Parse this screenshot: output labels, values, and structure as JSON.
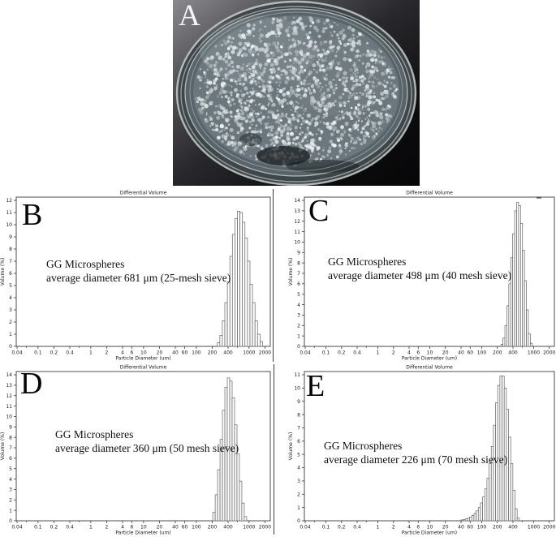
{
  "photo": {
    "label": "A"
  },
  "chart_data": [
    {
      "type": "bar",
      "panel": "B",
      "title": "Differential Volume",
      "xlabel": "Particle Diameter (um)",
      "ylabel": "Volume (%)",
      "x_scale": "log",
      "xlim": [
        0.04,
        2000
      ],
      "ylim": [
        0,
        12
      ],
      "y_tick_step": 1,
      "x_tick_labels": [
        "0.04",
        "0.1",
        "0.2",
        "0.4",
        "1",
        "2",
        "4",
        "6",
        "10",
        "20",
        "40",
        "60",
        "100",
        "200",
        "400",
        "1000",
        "2000"
      ],
      "x_minor_ticks": [
        0.06,
        0.6,
        600
      ],
      "grid": false,
      "annotation": [
        "GG Microspheres",
        "average diameter 681 μm (25-mesh sieve)"
      ],
      "bars": {
        "d_min": 250,
        "d_max": 1800,
        "heights": [
          0.3,
          0.9,
          2.1,
          3.6,
          5.3,
          7.4,
          9.2,
          10.5,
          11.1,
          11.0,
          10.2,
          8.9,
          7.0,
          5.1,
          3.6,
          2.1,
          1.0,
          0.4
        ]
      }
    },
    {
      "type": "bar",
      "panel": "C",
      "title": "Differential Volume",
      "xlabel": "Particle Diameter (um)",
      "ylabel": "Volume (%)",
      "x_scale": "log",
      "xlim": [
        0.04,
        2000
      ],
      "ylim": [
        0,
        14
      ],
      "y_tick_step": 1,
      "x_tick_labels": [
        "0.04",
        "0.1",
        "0.2",
        "0.4",
        "1",
        "2",
        "4",
        "6",
        "10",
        "20",
        "40",
        "60",
        "100",
        "200",
        "400",
        "1000",
        "2000"
      ],
      "x_minor_ticks": [
        0.06,
        0.6,
        600
      ],
      "grid": false,
      "artifact_dash": true,
      "annotation": [
        "GG Microspheres",
        "average diameter 498 μm (40 mesh sieve)"
      ],
      "bars": {
        "d_min": 235,
        "d_max": 940,
        "heights": [
          0.2,
          0.8,
          2.0,
          3.9,
          6.0,
          8.5,
          10.8,
          13.0,
          13.8,
          13.5,
          11.8,
          9.2,
          6.3,
          3.5,
          1.2,
          0.3
        ]
      }
    },
    {
      "type": "bar",
      "panel": "D",
      "title": "Differential Volume",
      "xlabel": "Particle Diameter (um)",
      "ylabel": "Volume (%)",
      "x_scale": "log",
      "xlim": [
        0.04,
        2000
      ],
      "ylim": [
        0,
        14
      ],
      "y_tick_step": 1,
      "x_tick_labels": [
        "0.04",
        "0.1",
        "0.2",
        "0.4",
        "1",
        "2",
        "4",
        "6",
        "10",
        "20",
        "40",
        "60",
        "100",
        "200",
        "400",
        "1000",
        "2000"
      ],
      "x_minor_ticks": [
        0.06,
        0.6,
        600
      ],
      "grid": false,
      "annotation": [
        "GG Microspheres",
        "average diameter 360 μm (50 mesh sieve)"
      ],
      "bars": {
        "d_min": 205,
        "d_max": 900,
        "heights": [
          0.8,
          2.5,
          4.9,
          7.8,
          10.6,
          12.8,
          13.7,
          13.4,
          11.8,
          9.2,
          6.4,
          3.8,
          1.7,
          0.4
        ]
      }
    },
    {
      "type": "bar",
      "panel": "E",
      "title": "Differential Volume",
      "xlabel": "Particle Diameter (um)",
      "ylabel": "Volume (%)",
      "x_scale": "log",
      "xlim": [
        0.04,
        2000
      ],
      "ylim": [
        0,
        11
      ],
      "y_tick_step": 1,
      "x_tick_labels": [
        "0.04",
        "0.1",
        "0.2",
        "0.4",
        "1",
        "2",
        "4",
        "6",
        "10",
        "20",
        "40",
        "60",
        "100",
        "200",
        "400",
        "1000",
        "2000"
      ],
      "x_minor_ticks": [
        0.06,
        0.6,
        600
      ],
      "grid": false,
      "annotation": [
        "GG Microspheres",
        "average diameter 226 μm (70 mesh sieve)"
      ],
      "bars": {
        "d_min": 40,
        "d_max": 530,
        "heights": [
          0.06,
          0.1,
          0.14,
          0.2,
          0.28,
          0.4,
          0.55,
          0.75,
          1.0,
          1.35,
          1.8,
          2.4,
          3.2,
          4.3,
          5.6,
          7.2,
          8.9,
          10.2,
          10.9,
          10.9,
          10.0,
          8.4,
          6.3,
          4.3,
          2.3,
          0.9,
          0.2
        ]
      }
    }
  ],
  "colors": {
    "chart_text": "#1a1a1a",
    "axis": "#3a3a3a",
    "bar_fill": "#ffffff",
    "bar_stroke": "#606060",
    "photo_background": "#1c1c1f",
    "dish_glass": "#c7cecd",
    "bead": "#e9eff1"
  }
}
